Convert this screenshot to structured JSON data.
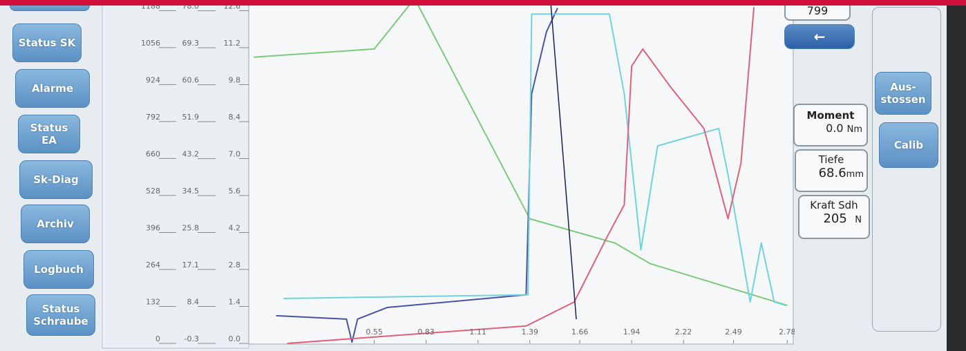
{
  "nav_buttons": [
    "Status SK",
    "Alarme",
    "Status EA",
    "Sk-Diag",
    "Archiv",
    "Logbuch",
    "Status Schraube"
  ],
  "counter": "799",
  "readouts": [
    {
      "label": "Moment",
      "value": "0.0",
      "unit": "Nm"
    },
    {
      "label": "Tiefe",
      "value": "68.6",
      "unit": "mm"
    },
    {
      "label": "Kraft Sdh",
      "value": "205",
      "unit": "N"
    }
  ],
  "side_buttons": [
    "Aus-stossen",
    "Calib"
  ],
  "chart_data": {
    "type": "line",
    "xlim": [
      -0.12,
      2.82
    ],
    "xticks": [
      0.55,
      0.83,
      1.11,
      1.39,
      1.66,
      1.94,
      2.22,
      2.49,
      2.78
    ],
    "ylim": [
      0,
      12.9
    ],
    "yticks": [
      {
        "value": 0,
        "label": "0.0"
      },
      1.4,
      2.8,
      4.2,
      5.6,
      {
        "value": 7,
        "label": "7.0"
      },
      8.4,
      9.8,
      11.2,
      12.6
    ],
    "y2lim": [
      0,
      1216
    ],
    "y2ticks": [
      0,
      132,
      264,
      396,
      528,
      660,
      792,
      924,
      1056,
      1188
    ],
    "y3lim": [
      -0.3,
      79.9
    ],
    "y3ticks": [
      -0.3,
      8.4,
      17.1,
      25.8,
      34.5,
      43.2,
      51.9,
      60.6,
      69.3,
      {
        "value": 78,
        "label": "78.0"
      }
    ],
    "series": [
      {
        "color": "#7cc97a",
        "x": [
          -0.1,
          0.55,
          0.75,
          0.78,
          1.39,
          1.85,
          2.04,
          2.78
        ],
        "values": [
          10.84,
          11.15,
          12.9,
          12.9,
          4.72,
          3.8,
          3.02,
          1.44
        ]
      },
      {
        "color": "#4a52a8",
        "x": [
          0.02,
          0.4,
          0.43,
          0.46,
          0.62,
          1.37,
          1.4,
          1.48,
          1.54
        ],
        "values": [
          1.05,
          0.92,
          0.05,
          0.92,
          1.36,
          1.84,
          9.45,
          11.8,
          12.7
        ]
      },
      {
        "color": "#6fd3df",
        "x": [
          0.06,
          1.38,
          1.4,
          1.82,
          1.9,
          1.99,
          2.08,
          2.41,
          2.47,
          2.58,
          2.64,
          2.71,
          2.77
        ],
        "values": [
          1.7,
          1.84,
          12.47,
          12.47,
          9.45,
          3.54,
          7.48,
          8.14,
          6.04,
          1.57,
          3.8,
          1.57,
          1.44
        ]
      },
      {
        "color": "#e0607a",
        "x": [
          0.08,
          1.37,
          1.63,
          1.81,
          1.9,
          1.94,
          2.0,
          2.15,
          2.33,
          2.46,
          2.53,
          2.6
        ],
        "values": [
          0,
          0.66,
          1.57,
          4.07,
          5.25,
          10.5,
          11.15,
          9.71,
          8.14,
          4.72,
          6.82,
          12.73
        ]
      }
    ]
  }
}
